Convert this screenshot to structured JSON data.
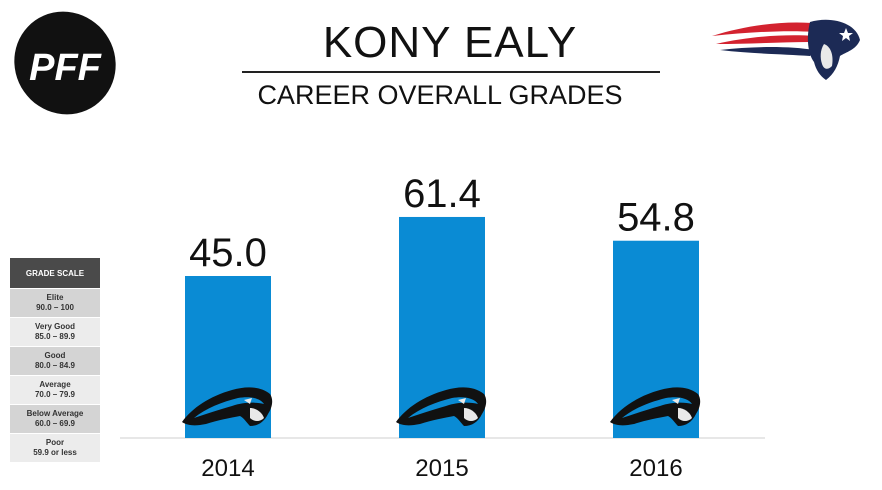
{
  "header": {
    "title": "KONY EALY",
    "subtitle": "CAREER OVERALL GRADES",
    "logo_text": "PFF"
  },
  "colors": {
    "bar": "#0a8bd4",
    "axis": "#cfcfcf",
    "legend_dark": "#4a4a4a",
    "legend_alt": "#d4d4d4",
    "legend_plain": "#ececec",
    "patriots_navy": "#1c2a55",
    "patriots_red": "#d3222f",
    "panther_black": "#111111",
    "panther_blue": "#0a8bd4"
  },
  "icons": {
    "pff": "pff-football-logo-icon",
    "team": "patriots-logo-icon",
    "bar_badge": "panthers-logo-icon"
  },
  "grade_scale": {
    "title": "GRADE SCALE",
    "rows": [
      {
        "label": "Elite",
        "range": "90.0 – 100"
      },
      {
        "label": "Very Good",
        "range": "85.0 – 89.9"
      },
      {
        "label": "Good",
        "range": "80.0 – 84.9"
      },
      {
        "label": "Average",
        "range": "70.0 – 79.9"
      },
      {
        "label": "Below Average",
        "range": "60.0 – 69.9"
      },
      {
        "label": "Poor",
        "range": "59.9 or less"
      }
    ]
  },
  "chart_data": {
    "type": "bar",
    "title": "CAREER OVERALL GRADES",
    "categories": [
      "2014",
      "2015",
      "2016"
    ],
    "values": [
      45.0,
      61.4,
      54.8
    ],
    "value_labels": [
      "45.0",
      "61.4",
      "54.8"
    ],
    "ylim": [
      0,
      80
    ],
    "grid": false,
    "xlabel": "",
    "ylabel": ""
  }
}
